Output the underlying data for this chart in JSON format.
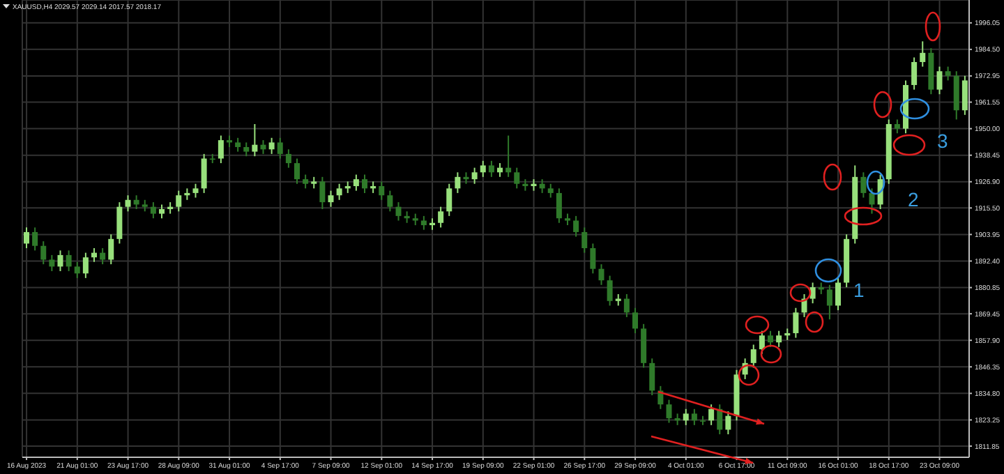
{
  "chart_data": {
    "type": "candlestick",
    "title": "XAUUSD,H4 2029.57 2029.14 2017.57 2018.17",
    "categories": [
      "16 Aug 2023",
      null,
      null,
      null,
      null,
      null,
      "21 Aug 01:00",
      null,
      null,
      null,
      null,
      null,
      "23 Aug 17:00",
      null,
      null,
      null,
      null,
      null,
      "28 Aug 09:00",
      null,
      null,
      null,
      null,
      null,
      "31 Aug 01:00",
      null,
      null,
      null,
      null,
      null,
      "4 Sep 17:00",
      null,
      null,
      null,
      null,
      null,
      "7 Sep 09:00",
      null,
      null,
      null,
      null,
      null,
      "12 Sep 01:00",
      null,
      null,
      null,
      null,
      null,
      "14 Sep 17:00",
      null,
      null,
      null,
      null,
      null,
      "19 Sep 09:00",
      null,
      null,
      null,
      null,
      null,
      "22 Sep 01:00",
      null,
      null,
      null,
      null,
      null,
      "26 Sep 17:00",
      null,
      null,
      null,
      null,
      null,
      "29 Sep 09:00",
      null,
      null,
      null,
      null,
      null,
      "4 Oct 01:00",
      null,
      null,
      null,
      null,
      null,
      "6 Oct 17:00",
      null,
      null,
      null,
      null,
      null,
      "11 Oct 09:00",
      null,
      null,
      null,
      null,
      null,
      "16 Oct 01:00",
      null,
      null,
      null,
      null,
      null,
      "18 Oct 17:00",
      null,
      null,
      null,
      null,
      null,
      "23 Oct 09:00",
      null,
      null,
      null
    ],
    "ohlc": [
      [
        1900,
        1907,
        1898,
        1905
      ],
      [
        1905,
        1907,
        1897,
        1899
      ],
      [
        1899,
        1901,
        1891,
        1893
      ],
      [
        1893,
        1895,
        1888,
        1890
      ],
      [
        1890,
        1897,
        1888,
        1895
      ],
      [
        1895,
        1897,
        1888,
        1890
      ],
      [
        1890,
        1892,
        1885,
        1887
      ],
      [
        1887,
        1896,
        1885,
        1894
      ],
      [
        1894,
        1898,
        1892,
        1896
      ],
      [
        1896,
        1898,
        1891,
        1893
      ],
      [
        1893,
        1904,
        1891,
        1902
      ],
      [
        1902,
        1918,
        1900,
        1916
      ],
      [
        1916,
        1921,
        1914,
        1919
      ],
      [
        1919,
        1921,
        1915,
        1917
      ],
      [
        1917,
        1919,
        1914,
        1916
      ],
      [
        1916,
        1918,
        1911,
        1913
      ],
      [
        1913,
        1917,
        1911,
        1915
      ],
      [
        1915,
        1918,
        1913,
        1916
      ],
      [
        1916,
        1923,
        1914,
        1921
      ],
      [
        1921,
        1924,
        1919,
        1922
      ],
      [
        1922,
        1926,
        1920,
        1924
      ],
      [
        1924,
        1939,
        1922,
        1937
      ],
      [
        1937,
        1939,
        1935,
        1937
      ],
      [
        1937,
        1947,
        1935,
        1945
      ],
      [
        1945,
        1947,
        1942,
        1944
      ],
      [
        1944,
        1946,
        1940,
        1942
      ],
      [
        1942,
        1944,
        1938,
        1940
      ],
      [
        1940,
        1952,
        1938,
        1943
      ],
      [
        1943,
        1945,
        1939,
        1941
      ],
      [
        1941,
        1946,
        1939,
        1944
      ],
      [
        1944,
        1946,
        1937,
        1939
      ],
      [
        1939,
        1941,
        1933,
        1935
      ],
      [
        1935,
        1937,
        1926,
        1928
      ],
      [
        1928,
        1930,
        1924,
        1926
      ],
      [
        1926,
        1929,
        1924,
        1927
      ],
      [
        1927,
        1929,
        1915,
        1918
      ],
      [
        1918,
        1923,
        1916,
        1921
      ],
      [
        1921,
        1926,
        1919,
        1924
      ],
      [
        1924,
        1927,
        1922,
        1925
      ],
      [
        1925,
        1930,
        1923,
        1928
      ],
      [
        1928,
        1930,
        1922,
        1924
      ],
      [
        1924,
        1927,
        1922,
        1925
      ],
      [
        1925,
        1927,
        1919,
        1921
      ],
      [
        1921,
        1923,
        1914,
        1916
      ],
      [
        1916,
        1918,
        1910,
        1912
      ],
      [
        1912,
        1914,
        1909,
        1911
      ],
      [
        1911,
        1913,
        1908,
        1910
      ],
      [
        1910,
        1912,
        1906,
        1908
      ],
      [
        1908,
        1911,
        1906,
        1909
      ],
      [
        1909,
        1916,
        1907,
        1914
      ],
      [
        1914,
        1926,
        1912,
        1924
      ],
      [
        1924,
        1931,
        1922,
        1929
      ],
      [
        1929,
        1931,
        1926,
        1928
      ],
      [
        1928,
        1933,
        1926,
        1931
      ],
      [
        1931,
        1936,
        1929,
        1934
      ],
      [
        1934,
        1936,
        1929,
        1931
      ],
      [
        1931,
        1935,
        1929,
        1933
      ],
      [
        1933,
        1947,
        1929,
        1931
      ],
      [
        1931,
        1933,
        1924,
        1926
      ],
      [
        1926,
        1928,
        1923,
        1925
      ],
      [
        1925,
        1928,
        1923,
        1926
      ],
      [
        1926,
        1928,
        1922,
        1924
      ],
      [
        1924,
        1926,
        1920,
        1922
      ],
      [
        1922,
        1924,
        1909,
        1911
      ],
      [
        1911,
        1913,
        1908,
        1910
      ],
      [
        1910,
        1912,
        1903,
        1905
      ],
      [
        1905,
        1907,
        1896,
        1898
      ],
      [
        1898,
        1900,
        1887,
        1889
      ],
      [
        1889,
        1891,
        1882,
        1884
      ],
      [
        1884,
        1886,
        1873,
        1875
      ],
      [
        1875,
        1878,
        1873,
        1876
      ],
      [
        1876,
        1878,
        1868,
        1870
      ],
      [
        1870,
        1872,
        1861,
        1863
      ],
      [
        1863,
        1865,
        1846,
        1848
      ],
      [
        1848,
        1850,
        1834,
        1836
      ],
      [
        1836,
        1838,
        1828,
        1830
      ],
      [
        1830,
        1832,
        1822,
        1824
      ],
      [
        1824,
        1826,
        1821,
        1823
      ],
      [
        1823,
        1828,
        1821,
        1826
      ],
      [
        1826,
        1828,
        1821,
        1823
      ],
      [
        1823,
        1825,
        1821,
        1823
      ],
      [
        1823,
        1830,
        1821,
        1828
      ],
      [
        1828,
        1830,
        1817,
        1819
      ],
      [
        1819,
        1827,
        1817,
        1825
      ],
      [
        1825,
        1845,
        1823,
        1843
      ],
      [
        1843,
        1850,
        1841,
        1848
      ],
      [
        1848,
        1856,
        1846,
        1854
      ],
      [
        1854,
        1862,
        1852,
        1860
      ],
      [
        1860,
        1862,
        1855,
        1857
      ],
      [
        1857,
        1862,
        1855,
        1860
      ],
      [
        1860,
        1863,
        1858,
        1861
      ],
      [
        1861,
        1872,
        1859,
        1870
      ],
      [
        1870,
        1878,
        1868,
        1876
      ],
      [
        1876,
        1883,
        1874,
        1881
      ],
      [
        1881,
        1883,
        1878,
        1880
      ],
      [
        1880,
        1882,
        1867,
        1873
      ],
      [
        1873,
        1885,
        1871,
        1883
      ],
      [
        1883,
        1904,
        1881,
        1902
      ],
      [
        1902,
        1934,
        1900,
        1929
      ],
      [
        1929,
        1931,
        1920,
        1922
      ],
      [
        1922,
        1924,
        1913,
        1917
      ],
      [
        1917,
        1930,
        1915,
        1928
      ],
      [
        1928,
        1954,
        1926,
        1952
      ],
      [
        1952,
        1954,
        1948,
        1950
      ],
      [
        1950,
        1971,
        1948,
        1969
      ],
      [
        1969,
        1981,
        1967,
        1979
      ],
      [
        1979,
        1988,
        1977,
        1983
      ],
      [
        1983,
        1985,
        1965,
        1967
      ],
      [
        1967,
        1977,
        1965,
        1975
      ],
      [
        1975,
        1977,
        1971,
        1973
      ],
      [
        1973,
        1975,
        1954,
        1958
      ],
      [
        1958,
        1973,
        1956,
        1971
      ]
    ],
    "colors": [
      "#98e07c",
      "#2f7a2a",
      "#2f7a2a",
      "#2f7a2a",
      "#98e07c",
      "#2f7a2a",
      "#2f7a2a",
      "#98e07c",
      "#98e07c",
      "#2f7a2a",
      "#98e07c",
      "#98e07c",
      "#98e07c",
      "#2f7a2a",
      "#2f7a2a",
      "#2f7a2a",
      "#98e07c",
      "#98e07c",
      "#98e07c",
      "#98e07c",
      "#98e07c",
      "#98e07c",
      "#2f7a2a",
      "#98e07c",
      "#2f7a2a",
      "#2f7a2a",
      "#2f7a2a",
      "#98e07c",
      "#2f7a2a",
      "#98e07c",
      "#2f7a2a",
      "#2f7a2a",
      "#2f7a2a",
      "#2f7a2a",
      "#98e07c",
      "#2f7a2a",
      "#98e07c",
      "#98e07c",
      "#98e07c",
      "#98e07c",
      "#2f7a2a",
      "#98e07c",
      "#2f7a2a",
      "#2f7a2a",
      "#2f7a2a",
      "#2f7a2a",
      "#2f7a2a",
      "#2f7a2a",
      "#98e07c",
      "#98e07c",
      "#98e07c",
      "#98e07c",
      "#2f7a2a",
      "#98e07c",
      "#98e07c",
      "#2f7a2a",
      "#98e07c",
      "#2f7a2a",
      "#2f7a2a",
      "#2f7a2a",
      "#98e07c",
      "#2f7a2a",
      "#2f7a2a",
      "#2f7a2a",
      "#2f7a2a",
      "#2f7a2a",
      "#2f7a2a",
      "#2f7a2a",
      "#2f7a2a",
      "#2f7a2a",
      "#98e07c",
      "#2f7a2a",
      "#2f7a2a",
      "#2f7a2a",
      "#2f7a2a",
      "#2f7a2a",
      "#2f7a2a",
      "#2f7a2a",
      "#98e07c",
      "#2f7a2a",
      "#2f7a2a",
      "#98e07c",
      "#2f7a2a",
      "#98e07c",
      "#98e07c",
      "#98e07c",
      "#98e07c",
      "#98e07c",
      "#2f7a2a",
      "#98e07c",
      "#98e07c",
      "#98e07c",
      "#98e07c",
      "#98e07c",
      "#2f7a2a",
      "#2f7a2a",
      "#98e07c",
      "#98e07c",
      "#98e07c",
      "#2f7a2a",
      "#2f7a2a",
      "#98e07c",
      "#98e07c",
      "#2f7a2a",
      "#98e07c",
      "#98e07c",
      "#98e07c",
      "#2f7a2a",
      "#98e07c",
      "#2f7a2a",
      "#2f7a2a",
      "#98e07c"
    ],
    "ylim": [
      1807,
      2006
    ],
    "yticks": [
      {
        "value": 1996.05,
        "label": "1996.05"
      },
      {
        "value": 1984.5,
        "label": "1984.50"
      },
      {
        "value": 1972.95,
        "label": "1972.95"
      },
      {
        "value": 1961.55,
        "label": "1961.55"
      },
      {
        "value": 1950,
        "label": "1950.00"
      },
      {
        "value": 1938.45,
        "label": "1938.45"
      },
      {
        "value": 1926.9,
        "label": "1926.90"
      },
      {
        "value": 1915.5,
        "label": "1915.50"
      },
      {
        "value": 1903.95,
        "label": "1903.95"
      },
      {
        "value": 1892.4,
        "label": "1892.40"
      },
      {
        "value": 1880.85,
        "label": "1880.85"
      },
      {
        "value": 1869.45,
        "label": "1869.45"
      },
      {
        "value": 1857.9,
        "label": "1857.90"
      },
      {
        "value": 1846.35,
        "label": "1846.35"
      },
      {
        "value": 1834.8,
        "label": "1834.80"
      },
      {
        "value": 1823.25,
        "label": "1823.25"
      },
      {
        "value": 1811.85,
        "label": "1811.85"
      }
    ],
    "grid": true,
    "annotations": [
      "1",
      "2",
      "3"
    ]
  }
}
